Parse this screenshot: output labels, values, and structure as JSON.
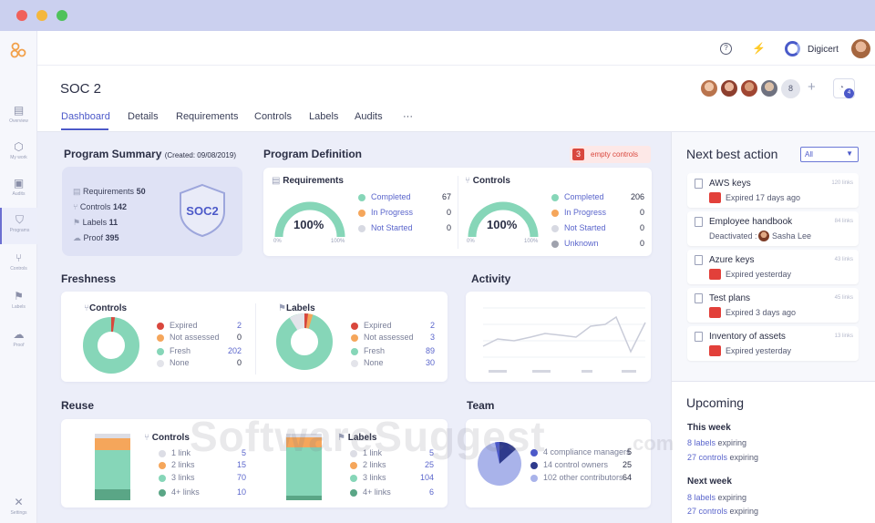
{
  "app": {
    "org_name": "Digicert"
  },
  "sidebar": {
    "items": [
      {
        "label": "Overview",
        "icon": "overview-icon"
      },
      {
        "label": "My work",
        "icon": "cube-icon"
      },
      {
        "label": "Audits",
        "icon": "audits-icon"
      },
      {
        "label": "Programs",
        "icon": "shield-icon"
      },
      {
        "label": "Controls",
        "icon": "controls-icon"
      },
      {
        "label": "Labels",
        "icon": "labels-icon"
      },
      {
        "label": "Proof",
        "icon": "cloud-icon"
      },
      {
        "label": "Settings",
        "icon": "tools-icon"
      }
    ]
  },
  "header": {
    "title": "SOC 2",
    "member_count": "8",
    "add_label": "+",
    "notif_badge": "4",
    "tabs": [
      "Dashboard",
      "Details",
      "Requirements",
      "Controls",
      "Labels",
      "Audits",
      "···"
    ]
  },
  "summary": {
    "title": "Program Summary",
    "created": "(Created: 09/08/2019)",
    "badge": "SOC2",
    "rows": [
      {
        "label": "Requirements",
        "value": "50"
      },
      {
        "label": "Controls",
        "value": "142"
      },
      {
        "label": "Labels",
        "value": "11"
      },
      {
        "label": "Proof",
        "value": "395"
      }
    ]
  },
  "definition": {
    "title": "Program Definition",
    "empty_count": "3",
    "empty_label": "empty controls",
    "requirements": {
      "title": "Requirements",
      "percent": "100%",
      "min": "0%",
      "max": "100%",
      "rows": [
        {
          "label": "Completed",
          "value": "67"
        },
        {
          "label": "In Progress",
          "value": "0"
        },
        {
          "label": "Not Started",
          "value": "0"
        }
      ]
    },
    "controls": {
      "title": "Controls",
      "percent": "100%",
      "min": "0%",
      "max": "100%",
      "rows": [
        {
          "label": "Completed",
          "value": "206"
        },
        {
          "label": "In Progress",
          "value": "0"
        },
        {
          "label": "Not Started",
          "value": "0"
        },
        {
          "label": "Unknown",
          "value": "0"
        }
      ]
    }
  },
  "freshness": {
    "title": "Freshness",
    "controls": {
      "title": "Controls",
      "rows": [
        {
          "label": "Expired",
          "value": "2"
        },
        {
          "label": "Not assessed",
          "value": "0"
        },
        {
          "label": "Fresh",
          "value": "202"
        },
        {
          "label": "None",
          "value": "0"
        }
      ]
    },
    "labels": {
      "title": "Labels",
      "rows": [
        {
          "label": "Expired",
          "value": "2"
        },
        {
          "label": "Not assessed",
          "value": "3"
        },
        {
          "label": "Fresh",
          "value": "89"
        },
        {
          "label": "None",
          "value": "30"
        }
      ]
    }
  },
  "activity": {
    "title": "Activity"
  },
  "reuse": {
    "title": "Reuse",
    "controls": {
      "title": "Controls",
      "rows": [
        {
          "label": "1 link",
          "value": "5"
        },
        {
          "label": "2 links",
          "value": "15"
        },
        {
          "label": "3 links",
          "value": "70"
        },
        {
          "label": "4+ links",
          "value": "10"
        }
      ]
    },
    "labels": {
      "title": "Labels",
      "rows": [
        {
          "label": "1 link",
          "value": "5"
        },
        {
          "label": "2 links",
          "value": "25"
        },
        {
          "label": "3 links",
          "value": "104"
        },
        {
          "label": "4+ links",
          "value": "6"
        }
      ]
    }
  },
  "team": {
    "title": "Team",
    "rows": [
      {
        "label": "4 compliance managers",
        "value": "5"
      },
      {
        "label": "14 control owners",
        "value": "25"
      },
      {
        "label": "102 other contributors",
        "value": "64"
      }
    ]
  },
  "nba": {
    "title": "Next best action",
    "filter": "All",
    "items": [
      {
        "title": "AWS keys",
        "sub": "Expired 17 days ago",
        "links": "120 links"
      },
      {
        "title": "Employee handbook",
        "sub_prefix": "Deactivated :",
        "sub": "Sasha Lee",
        "links": "84 links"
      },
      {
        "title": "Azure keys",
        "sub": "Expired yesterday",
        "links": "43 links"
      },
      {
        "title": "Test plans",
        "sub": "Expired 3 days ago",
        "links": "45 links"
      },
      {
        "title": "Inventory of assets",
        "sub": "Expired yesterday",
        "links": "13 links"
      }
    ]
  },
  "upcoming": {
    "title": "Upcoming",
    "this_week": {
      "title": "This week",
      "l1_link": "8 labels",
      "l1_rest": " expiring",
      "l2_link": "27 controls",
      "l2_rest": " expiring"
    },
    "next_week": {
      "title": "Next week",
      "l1_link": "8 labels",
      "l1_rest": " expiring",
      "l2_link": "27 controls",
      "l2_rest": " expiring"
    }
  },
  "colors": {
    "accent": "#4c59c9",
    "teal": "#86d6b8",
    "orange": "#f5a65b",
    "red": "#d9473d",
    "grey": "#d7d9e2",
    "dark_green": "#5aa686"
  },
  "watermark": {
    "main": "SoftwareSuggest",
    "tld": ".com"
  }
}
